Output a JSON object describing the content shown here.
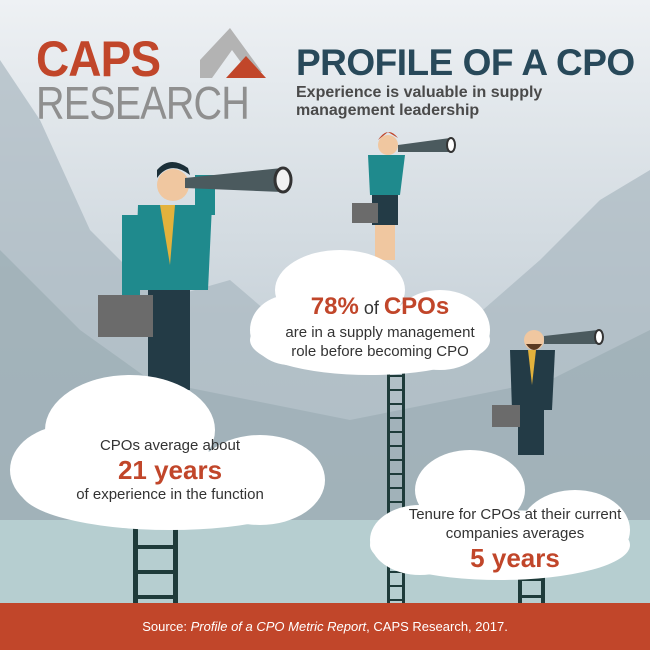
{
  "logo": {
    "line1": "CAPS",
    "line2": "RESEARCH"
  },
  "header": {
    "title": "PROFILE OF A CPO",
    "subtitle": "Experience is valuable in supply management leadership"
  },
  "stats": [
    {
      "pre": "CPOs average about",
      "value": "21 years",
      "post": "of experience in the function"
    },
    {
      "value": "78%",
      "value_mid": " of ",
      "value_end": "CPOs",
      "post": "are in a supply management role before becoming CPO"
    },
    {
      "pre": "Tenure for CPOs at their current companies averages",
      "value": "5 years"
    }
  ],
  "footer": {
    "prefix": "Source: ",
    "report": "Profile of a CPO Metric Report",
    "suffix": ", CAPS Research, 2017."
  },
  "colors": {
    "accent": "#c1462a",
    "title": "#28495a",
    "ladder": "#1e3b3a",
    "footer": "#c1462a"
  }
}
